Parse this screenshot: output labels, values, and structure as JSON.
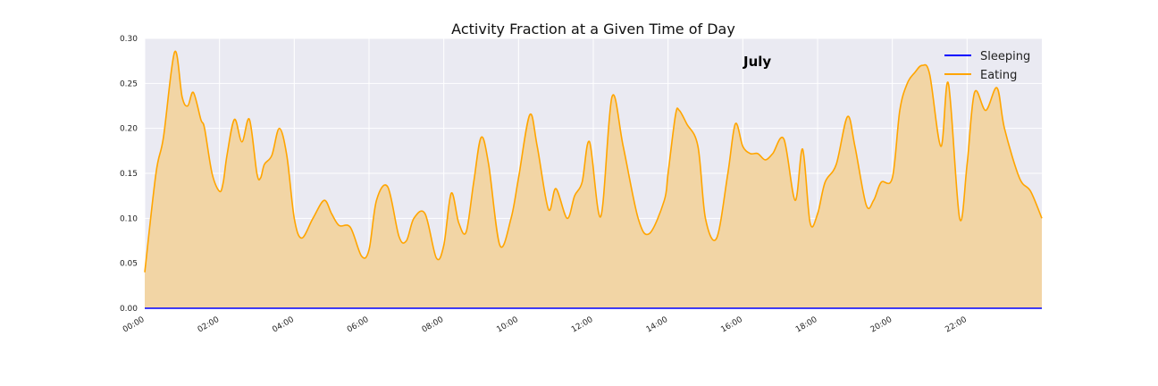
{
  "chart_data": {
    "type": "area",
    "title": "Activity Fraction at a Given Time of Day",
    "annotation": "July",
    "xlabel": "",
    "ylabel": "",
    "x_range_hours": [
      0,
      24
    ],
    "ylim": [
      0,
      0.3
    ],
    "y_ticks": [
      "0.00",
      "0.05",
      "0.10",
      "0.15",
      "0.20",
      "0.25",
      "0.30"
    ],
    "x_ticks": [
      "00:00",
      "02:00",
      "04:00",
      "06:00",
      "08:00",
      "10:00",
      "12:00",
      "14:00",
      "16:00",
      "18:00",
      "20:00",
      "22:00"
    ],
    "grid": true,
    "legend_position": "top-right",
    "colors": {
      "background": "#eaeaf2",
      "grid": "#ffffff",
      "eating": "#ffa500",
      "eating_fill": "#f2d5a5",
      "sleeping": "#0000ff"
    },
    "series": [
      {
        "name": "Sleeping",
        "x_hours": [
          0,
          24
        ],
        "values": [
          0,
          0
        ]
      },
      {
        "name": "Eating",
        "x_hours": [
          0.0,
          0.3,
          0.5,
          0.8,
          1.0,
          1.15,
          1.3,
          1.5,
          1.6,
          1.8,
          2.0,
          2.1,
          2.2,
          2.4,
          2.6,
          2.8,
          3.0,
          3.1,
          3.2,
          3.4,
          3.6,
          3.8,
          4.0,
          4.2,
          4.5,
          4.8,
          5.0,
          5.2,
          5.5,
          5.8,
          6.0,
          6.2,
          6.5,
          6.8,
          7.0,
          7.2,
          7.5,
          7.8,
          8.0,
          8.2,
          8.4,
          8.6,
          8.8,
          9.0,
          9.2,
          9.5,
          9.8,
          10.0,
          10.3,
          10.5,
          10.8,
          11.0,
          11.3,
          11.5,
          11.7,
          11.9,
          12.2,
          12.5,
          12.8,
          13.2,
          13.5,
          13.9,
          14.0,
          14.2,
          14.3,
          14.5,
          14.8,
          15.0,
          15.3,
          15.6,
          15.8,
          16.0,
          16.2,
          16.4,
          16.6,
          16.8,
          17.1,
          17.4,
          17.6,
          17.8,
          18.0,
          18.2,
          18.5,
          18.8,
          19.0,
          19.3,
          19.5,
          19.7,
          20.0,
          20.2,
          20.4,
          20.6,
          20.8,
          21.0,
          21.3,
          21.5,
          21.8,
          22.0,
          22.2,
          22.5,
          22.8,
          23.0,
          23.4,
          23.7,
          24.0
        ],
        "values": [
          0.04,
          0.15,
          0.19,
          0.285,
          0.235,
          0.225,
          0.24,
          0.21,
          0.2,
          0.15,
          0.13,
          0.14,
          0.17,
          0.21,
          0.185,
          0.21,
          0.15,
          0.145,
          0.16,
          0.17,
          0.2,
          0.17,
          0.1,
          0.078,
          0.1,
          0.12,
          0.105,
          0.092,
          0.09,
          0.058,
          0.065,
          0.12,
          0.135,
          0.08,
          0.075,
          0.1,
          0.105,
          0.056,
          0.07,
          0.128,
          0.095,
          0.085,
          0.14,
          0.19,
          0.16,
          0.07,
          0.1,
          0.145,
          0.215,
          0.18,
          0.11,
          0.133,
          0.1,
          0.125,
          0.14,
          0.185,
          0.102,
          0.235,
          0.18,
          0.1,
          0.083,
          0.12,
          0.15,
          0.215,
          0.22,
          0.205,
          0.18,
          0.1,
          0.078,
          0.15,
          0.205,
          0.18,
          0.172,
          0.172,
          0.165,
          0.172,
          0.188,
          0.12,
          0.177,
          0.095,
          0.105,
          0.14,
          0.16,
          0.213,
          0.18,
          0.115,
          0.12,
          0.14,
          0.145,
          0.22,
          0.25,
          0.262,
          0.27,
          0.26,
          0.18,
          0.25,
          0.1,
          0.16,
          0.24,
          0.22,
          0.245,
          0.2,
          0.145,
          0.13,
          0.1
        ]
      }
    ]
  }
}
